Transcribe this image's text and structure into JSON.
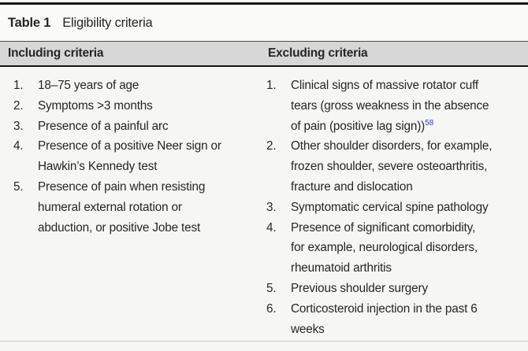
{
  "table": {
    "caption": {
      "label": "Table 1",
      "title": "Eligibility criteria"
    },
    "headers": {
      "including": "Including criteria",
      "excluding": "Excluding criteria"
    },
    "including": {
      "items": [
        {
          "num": "1.",
          "lines": [
            "18–75 years of age"
          ]
        },
        {
          "num": "2.",
          "lines": [
            "Symptoms >3 months"
          ]
        },
        {
          "num": "3.",
          "lines": [
            "Presence of a painful arc"
          ]
        },
        {
          "num": "4.",
          "lines": [
            "Presence of a positive Neer sign or",
            "Hawkin’s Kennedy test"
          ]
        },
        {
          "num": "5.",
          "lines": [
            "Presence of pain when resisting",
            "humeral external rotation or",
            "abduction, or positive Jobe test"
          ]
        }
      ]
    },
    "excluding": {
      "items": [
        {
          "num": "1.",
          "lines": [
            "Clinical signs of massive rotator cuff",
            "tears (gross weakness in the absence",
            "of pain (positive lag sign))"
          ],
          "citation": "58"
        },
        {
          "num": "2.",
          "lines": [
            "Other shoulder disorders, for example,",
            "frozen shoulder, severe osteoarthritis,",
            "fracture and dislocation"
          ]
        },
        {
          "num": "3.",
          "lines": [
            "Symptomatic cervical spine pathology"
          ]
        },
        {
          "num": "4.",
          "lines": [
            "Presence of significant comorbidity,",
            "for example, neurological disorders,",
            "rheumatoid arthritis"
          ]
        },
        {
          "num": "5.",
          "lines": [
            "Previous shoulder surgery"
          ]
        },
        {
          "num": "6.",
          "lines": [
            "Corticosteroid injection in the past 6",
            "weeks"
          ]
        }
      ]
    },
    "colors": {
      "citation_blue": "#3338c8",
      "header_band_gray": "#d7d7d7",
      "top_rule_black": "#161616",
      "bottom_rule_gray": "#c9c9c9"
    }
  }
}
